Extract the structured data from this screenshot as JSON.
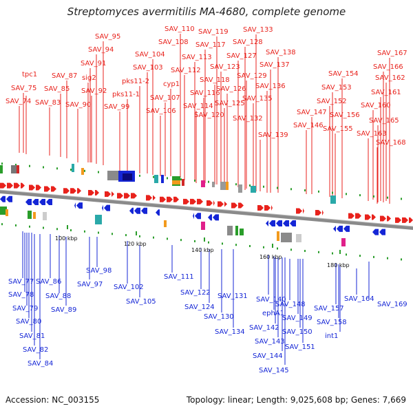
{
  "title": "Streptomyces avermitilis MA-4680, complete genome",
  "footer": {
    "accession": "Accession: NC_003155",
    "info": "Topology: linear; Length: 9,025,608 bp; Genes: 7,669"
  },
  "colors": {
    "forward": "#e8221c",
    "reverse": "#1526d6",
    "backbone": "#8a8a8a",
    "tick": "#2a9d2a"
  },
  "scale_labels": [
    "100 kbp",
    "120 kbp",
    "140 kbp",
    "160 kbp",
    "180 kbp"
  ],
  "top_labels": [
    "tpc1",
    "SAV_75",
    "SAV_74",
    "SAV_83",
    "SAV_85",
    "SAV_87",
    "SAV_90",
    "SAV_91",
    "sig2",
    "SAV_92",
    "SAV_94",
    "SAV_95",
    "SAV_99",
    "pks11-1",
    "pks11-2",
    "SAV_103",
    "SAV_104",
    "SAV_106",
    "SAV_107",
    "cyp1",
    "SAV_108",
    "SAV_110",
    "SAV_112",
    "SAV_113",
    "SAV_114",
    "SAV_116",
    "SAV_117",
    "SAV_118",
    "SAV_119",
    "SAV_120",
    "SAV_123",
    "SAV_125",
    "SAV_126",
    "SAV_127",
    "SAV_128",
    "SAV_129",
    "SAV_132",
    "SAV_133",
    "SAV_135",
    "SAV_136",
    "SAV_137",
    "SAV_138",
    "SAV_139",
    "SAV_146",
    "SAV_147",
    "SAV_152",
    "SAV_153",
    "SAV_154",
    "SAV_155",
    "SAV_156",
    "SAV_160",
    "SAV_161",
    "SAV_162",
    "SAV_163",
    "SAV_165",
    "SAV_166",
    "SAV_167",
    "SAV_168"
  ],
  "bottom_labels": [
    "SAV_77",
    "SAV_78",
    "SAV_79",
    "SAV_80",
    "SAV_81",
    "SAV_82",
    "SAV_84",
    "SAV_86",
    "SAV_88",
    "SAV_89",
    "SAV_97",
    "SAV_98",
    "SAV_102",
    "SAV_105",
    "SAV_111",
    "SAV_122",
    "SAV_124",
    "SAV_130",
    "SAV_131",
    "SAV_134",
    "SAV_140",
    "ephA1",
    "SAV_142",
    "SAV_143",
    "SAV_144",
    "SAV_145",
    "SAV_148",
    "SAV_149",
    "SAV_150",
    "SAV_151",
    "SAV_157",
    "SAV_158",
    "int1",
    "SAV_164",
    "SAV_169"
  ]
}
